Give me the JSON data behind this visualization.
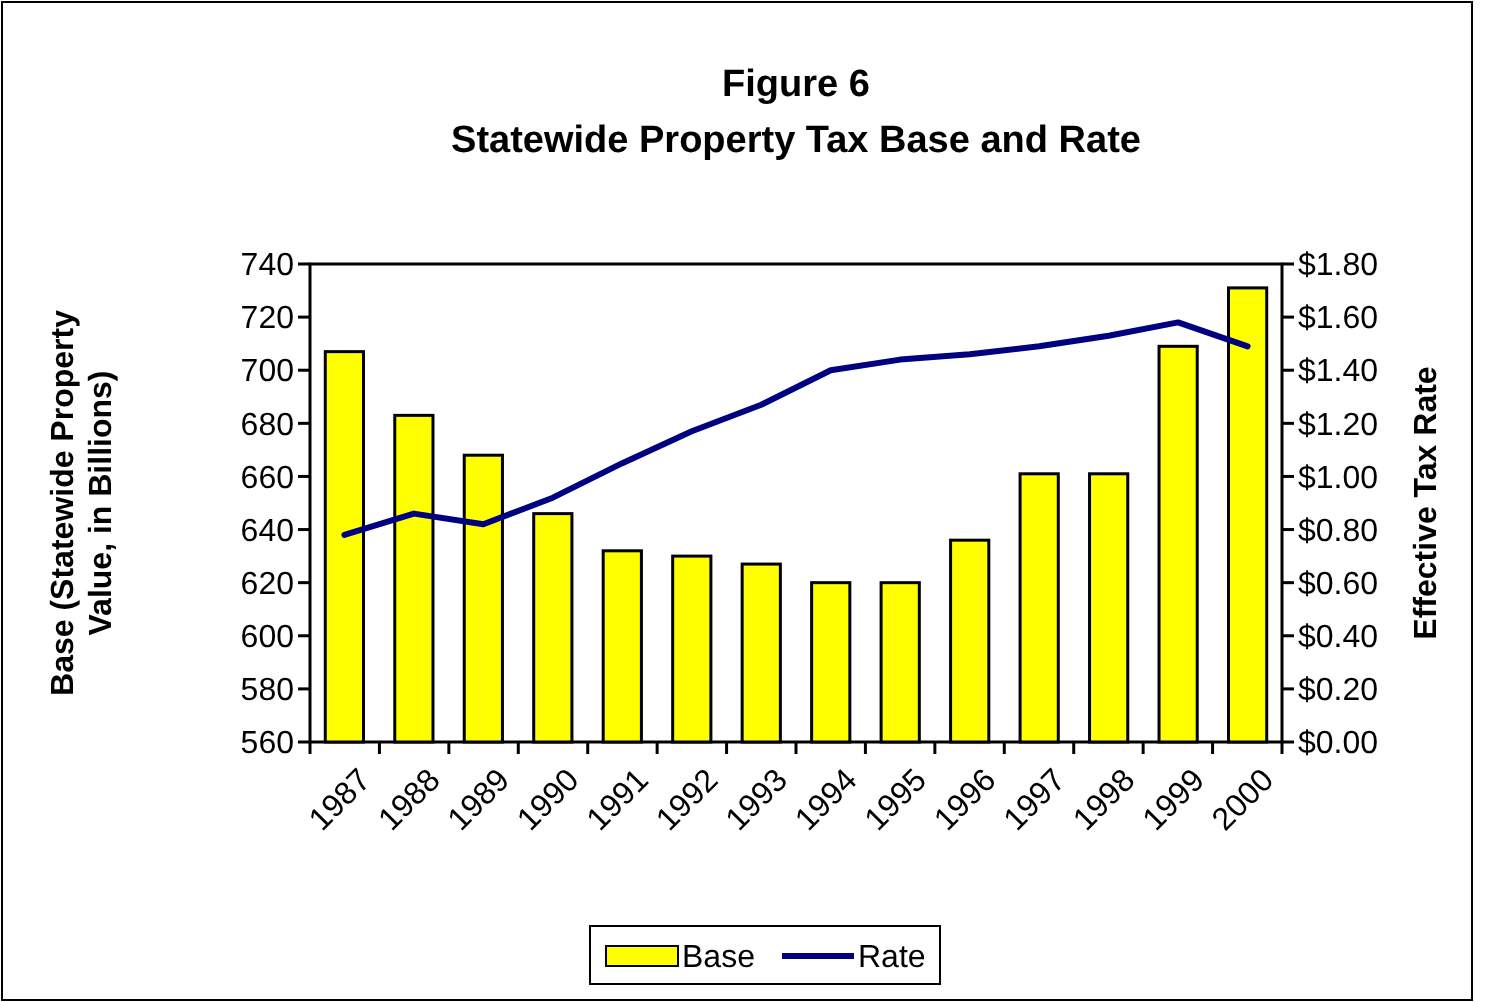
{
  "chart_data": {
    "type": "bar",
    "title": "Figure 6",
    "subtitle": "Statewide Property Tax Base and Rate",
    "ylabel": "Base (Statewide Property Value, in Billions)",
    "y2label": "Effective Tax Rate",
    "categories": [
      "1987",
      "1988",
      "1989",
      "1990",
      "1991",
      "1992",
      "1993",
      "1994",
      "1995",
      "1996",
      "1997",
      "1998",
      "1999",
      "2000"
    ],
    "series": [
      {
        "name": "Base",
        "color": "#ffff00",
        "values": [
          707,
          683,
          668,
          646,
          632,
          630,
          627,
          620,
          620,
          636,
          661,
          661,
          709,
          731
        ]
      },
      {
        "name": "Rate",
        "type": "line",
        "axis": "y2",
        "color": "#000080",
        "values": [
          0.78,
          0.86,
          0.82,
          0.92,
          1.05,
          1.17,
          1.27,
          1.4,
          1.44,
          1.46,
          1.49,
          1.53,
          1.58,
          1.49
        ]
      }
    ],
    "ylim": [
      560,
      740
    ],
    "yticks": [
      560,
      580,
      600,
      620,
      640,
      660,
      680,
      700,
      720,
      740
    ],
    "y2lim": [
      0,
      1.8
    ],
    "y2ticks": [
      {
        "value": 0,
        "label": "$0.00"
      },
      {
        "value": 0.2,
        "label": "$0.20"
      },
      {
        "value": 0.4,
        "label": "$0.40"
      },
      {
        "value": 0.6,
        "label": "$0.60"
      },
      {
        "value": 0.8,
        "label": "$0.80"
      },
      {
        "value": 1,
        "label": "$1.00"
      },
      {
        "value": 1.2,
        "label": "$1.20"
      },
      {
        "value": 1.4,
        "label": "$1.40"
      },
      {
        "value": 1.6,
        "label": "$1.60"
      },
      {
        "value": 1.8,
        "label": "$1.80"
      }
    ],
    "legend": "bottom",
    "grid": false
  }
}
